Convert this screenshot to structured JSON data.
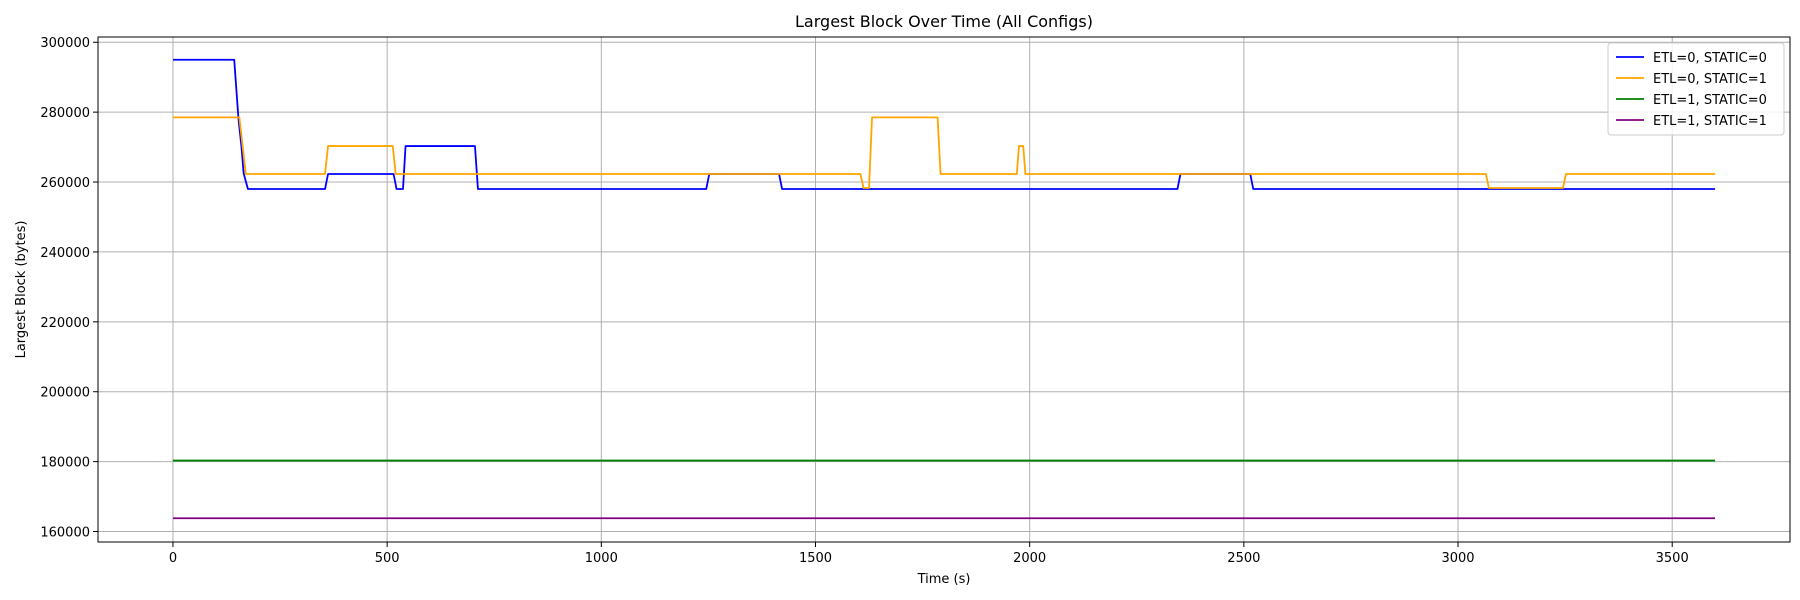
{
  "chart_data": {
    "type": "line",
    "title": "Largest Block Over Time (All Configs)",
    "xlabel": "Time (s)",
    "ylabel": "Largest Block (bytes)",
    "xlim": [
      -175,
      3775
    ],
    "ylim": [
      157000,
      301500
    ],
    "xticks": [
      0,
      500,
      1000,
      1500,
      2000,
      2500,
      3000,
      3500
    ],
    "yticks": [
      160000,
      180000,
      200000,
      220000,
      240000,
      260000,
      280000,
      300000
    ],
    "grid": true,
    "legend_position": "top-right",
    "series": [
      {
        "name": "ETL=0, STATIC=0",
        "color": "#0000ff",
        "points": [
          [
            0,
            295000
          ],
          [
            143,
            295000
          ],
          [
            153,
            278000
          ],
          [
            160,
            270000
          ],
          [
            165,
            262500
          ],
          [
            175,
            258000
          ],
          [
            355,
            258000
          ],
          [
            362,
            262300
          ],
          [
            515,
            262300
          ],
          [
            522,
            258000
          ],
          [
            537,
            258000
          ],
          [
            543,
            270300
          ],
          [
            705,
            270300
          ],
          [
            712,
            258000
          ],
          [
            1245,
            258000
          ],
          [
            1252,
            262300
          ],
          [
            1415,
            262300
          ],
          [
            1422,
            258000
          ],
          [
            2345,
            258000
          ],
          [
            2352,
            262300
          ],
          [
            2515,
            262300
          ],
          [
            2522,
            258000
          ],
          [
            3600,
            258000
          ]
        ]
      },
      {
        "name": "ETL=0, STATIC=1",
        "color": "#ffa500",
        "points": [
          [
            0,
            278500
          ],
          [
            155,
            278500
          ],
          [
            170,
            262300
          ],
          [
            355,
            262300
          ],
          [
            362,
            270300
          ],
          [
            513,
            270300
          ],
          [
            520,
            262300
          ],
          [
            1605,
            262300
          ],
          [
            1612,
            258300
          ],
          [
            1625,
            258300
          ],
          [
            1632,
            278500
          ],
          [
            1785,
            278500
          ],
          [
            1792,
            262300
          ],
          [
            1970,
            262300
          ],
          [
            1975,
            270300
          ],
          [
            1985,
            270300
          ],
          [
            1990,
            262300
          ],
          [
            3065,
            262300
          ],
          [
            3072,
            258300
          ],
          [
            3245,
            258300
          ],
          [
            3252,
            262300
          ],
          [
            3600,
            262300
          ]
        ]
      },
      {
        "name": "ETL=1, STATIC=0",
        "color": "#008000",
        "points": [
          [
            0,
            180300
          ],
          [
            3600,
            180300
          ]
        ]
      },
      {
        "name": "ETL=1, STATIC=1",
        "color": "#800080",
        "points": [
          [
            0,
            163800
          ],
          [
            3600,
            163800
          ]
        ]
      }
    ]
  }
}
